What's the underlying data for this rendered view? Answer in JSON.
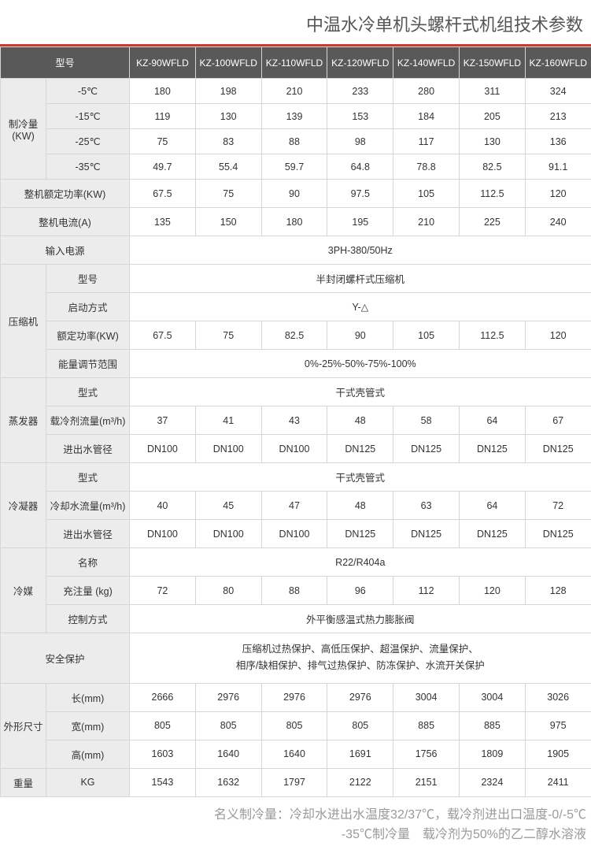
{
  "title": "中温水冷单机头螺杆式机组技术参数",
  "header": {
    "model_label": "型号",
    "models": [
      "KZ-90WFLD",
      "KZ-100WFLD",
      "KZ-110WFLD",
      "KZ-120WFLD",
      "KZ-140WFLD",
      "KZ-150WFLD",
      "KZ-160WFLD"
    ]
  },
  "cooling": {
    "group_label": "制冷量(KW)",
    "rows": [
      {
        "temp": "-5℃",
        "v": [
          "180",
          "198",
          "210",
          "233",
          "280",
          "311",
          "324"
        ]
      },
      {
        "temp": "-15℃",
        "v": [
          "119",
          "130",
          "139",
          "153",
          "184",
          "205",
          "213"
        ]
      },
      {
        "temp": "-25℃",
        "v": [
          "75",
          "83",
          "88",
          "98",
          "117",
          "130",
          "136"
        ]
      },
      {
        "temp": "-35℃",
        "v": [
          "49.7",
          "55.4",
          "59.7",
          "64.8",
          "78.8",
          "82.5",
          "91.1"
        ]
      }
    ]
  },
  "rated_power": {
    "label": "整机额定功率(KW)",
    "v": [
      "67.5",
      "75",
      "90",
      "97.5",
      "105",
      "112.5",
      "120"
    ]
  },
  "current": {
    "label": "整机电流(A)",
    "v": [
      "135",
      "150",
      "180",
      "195",
      "210",
      "225",
      "240"
    ]
  },
  "power_input": {
    "label": "输入电源",
    "value": "3PH-380/50Hz"
  },
  "compressor": {
    "group_label": "压缩机",
    "model": {
      "label": "型号",
      "value": "半封闭螺杆式压缩机"
    },
    "start": {
      "label": "启动方式",
      "value": "Y-△"
    },
    "rated": {
      "label": "额定功率(KW)",
      "v": [
        "67.5",
        "75",
        "82.5",
        "90",
        "105",
        "112.5",
        "120"
      ]
    },
    "energy": {
      "label": "能量调节范围",
      "value": "0%-25%-50%-75%-100%"
    }
  },
  "evaporator": {
    "group_label": "蒸发器",
    "type": {
      "label": "型式",
      "value": "干式壳管式"
    },
    "flow": {
      "label": "载冷剂流量(m³/h)",
      "v": [
        "37",
        "41",
        "43",
        "48",
        "58",
        "64",
        "67"
      ]
    },
    "pipe": {
      "label": "进出水管径",
      "v": [
        "DN100",
        "DN100",
        "DN100",
        "DN125",
        "DN125",
        "DN125",
        "DN125"
      ]
    }
  },
  "condenser": {
    "group_label": "冷凝器",
    "type": {
      "label": "型式",
      "value": "干式壳管式"
    },
    "flow": {
      "label": "冷却水流量(m³/h)",
      "v": [
        "40",
        "45",
        "47",
        "48",
        "63",
        "64",
        "72"
      ]
    },
    "pipe": {
      "label": "进出水管径",
      "v": [
        "DN100",
        "DN100",
        "DN100",
        "DN125",
        "DN125",
        "DN125",
        "DN125"
      ]
    }
  },
  "refrigerant": {
    "group_label": "冷媒",
    "name": {
      "label": "名称",
      "value": "R22/R404a"
    },
    "charge": {
      "label": "充注量 (kg)",
      "v": [
        "72",
        "80",
        "88",
        "96",
        "112",
        "120",
        "128"
      ]
    },
    "control": {
      "label": "控制方式",
      "value": "外平衡感温式热力膨胀阀"
    }
  },
  "safety": {
    "label": "安全保护",
    "line1": "压缩机过热保护、高低压保护、超温保护、流量保护、",
    "line2": "相序/缺相保护、排气过热保护、防冻保护、水流开关保护"
  },
  "dimensions": {
    "group_label": "外形尺寸",
    "length": {
      "label": "长(mm)",
      "v": [
        "2666",
        "2976",
        "2976",
        "2976",
        "3004",
        "3004",
        "3026"
      ]
    },
    "width": {
      "label": "宽(mm)",
      "v": [
        "805",
        "805",
        "805",
        "805",
        "885",
        "885",
        "975"
      ]
    },
    "height": {
      "label": "高(mm)",
      "v": [
        "1603",
        "1640",
        "1640",
        "1691",
        "1756",
        "1809",
        "1905"
      ]
    }
  },
  "weight": {
    "group_label": "重量",
    "label": "KG",
    "v": [
      "1543",
      "1632",
      "1797",
      "2122",
      "2151",
      "2324",
      "2411"
    ]
  },
  "footnote": {
    "line1": "名义制冷量：冷却水进出水温度32/37℃，载冷剂进出口温度-0/-5℃",
    "line2": "-35℃制冷量　载冷剂为50%的乙二醇水溶液"
  },
  "colors": {
    "accent": "#d0392a",
    "header_bg": "#595959",
    "header_fg": "#ffffff",
    "row_header_bg": "#ececec",
    "border": "#d6d6d6",
    "text": "#333333",
    "footnote": "#9a9a9a"
  }
}
